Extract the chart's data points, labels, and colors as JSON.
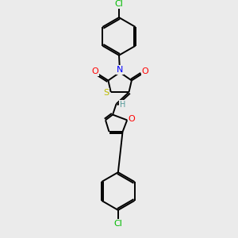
{
  "background_color": "#ebebeb",
  "atom_colors": {
    "Cl": "#00bb00",
    "N": "#0000ff",
    "O": "#ff0000",
    "S": "#bbbb00",
    "C": "#000000",
    "H": "#559999"
  },
  "figsize": [
    3.0,
    3.0
  ],
  "dpi": 100,
  "lw": 1.4,
  "fs": 8.0
}
